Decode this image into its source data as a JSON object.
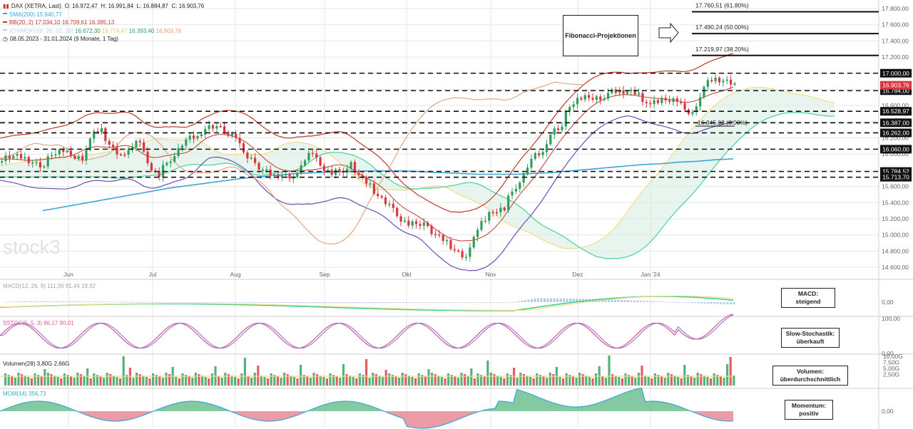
{
  "header": {
    "instrument": {
      "label": "DAX (XETRA, Last)",
      "open": "O: 16.972,47",
      "high": "H: 16.991,84",
      "low": "L: 16.884,87",
      "close": "C: 16.903,76",
      "color": "#c0392b"
    },
    "sma": {
      "label": "SMA(200)",
      "value": "15.940,77",
      "color": "#3aa7d8"
    },
    "bb": {
      "label": "BB(20, 2)",
      "values": "17.034,10 16.709,61 16.385,13",
      "color": "#c0392b"
    },
    "ichimoku": {
      "label": "ICHIMOKU(9, 26, 52, 26)",
      "v1": "16.672,30",
      "v2": "16.774,47",
      "v3": "16.393,40",
      "v4": "16.903,76",
      "color": "#bbbbbb"
    },
    "range": "08.05.2023 - 31.01.2024",
    "range_note": "(9 Monate, 1 Tag)"
  },
  "watermark": "stock3",
  "fibonacci": {
    "box_label": "Fibonacci-Projektionen",
    "levels": [
      {
        "label": "17.760,51 (61.80%)",
        "value": 17760.51
      },
      {
        "label": "17.490,24 (50.00%)",
        "value": 17490.24
      },
      {
        "label": "17.219,97 (38.20%)",
        "value": 17219.97
      },
      {
        "label": "16.345,02 (0.00%)",
        "value": 16345.02
      }
    ]
  },
  "price_axis": {
    "ticks": [
      "17.800,00",
      "17.600,00",
      "17.400,00",
      "17.200,00",
      "17.000,00",
      "16.800,00",
      "16.600,00",
      "16.400,00",
      "16.200,00",
      "16.000,00",
      "15.800,00",
      "15.600,00",
      "15.400,00",
      "15.200,00",
      "15.000,00",
      "14.800,00",
      "14.600,00"
    ],
    "tick_values": [
      17800,
      17600,
      17400,
      17200,
      17000,
      16800,
      16600,
      16400,
      16200,
      16000,
      15800,
      15600,
      15400,
      15200,
      15000,
      14800,
      14600
    ]
  },
  "hlines": [
    {
      "label": "17.000,00",
      "value": 17000
    },
    {
      "label": "16.784,00",
      "value": 16784
    },
    {
      "label": "16.528,97",
      "value": 16528.97
    },
    {
      "label": "16.387,00",
      "value": 16387
    },
    {
      "label": "16.262,00",
      "value": 16262
    },
    {
      "label": "16.060,00",
      "value": 16060
    },
    {
      "label": "15.784,52",
      "value": 15784.52
    },
    {
      "label": "15.713,70",
      "value": 15713.7
    }
  ],
  "last_price": {
    "label": "16.903,76",
    "value": 16903.76,
    "color": "#d9363e"
  },
  "months": [
    "Jun",
    "Jul",
    "Aug",
    "Sep",
    "Okt",
    "Nov",
    "Dez",
    "Jan '24"
  ],
  "panels": {
    "macd": {
      "label": "MACD(12, 26, 9)",
      "v1": "111,36",
      "v2": "91,44",
      "v3": "19,92",
      "axis": "0,00",
      "note_title": "MACD:",
      "note_value": "steigend"
    },
    "stoch": {
      "label": "SSTOC(5, 5, 3)",
      "v1": "86,17",
      "v2": "90,01",
      "axis_top": "100,00",
      "axis_bottom": "0,00",
      "note_title": "Slow-Stochastik:",
      "note_value": "überkauft"
    },
    "volume": {
      "label": "Volumen(28)",
      "v1": "3,80G",
      "v2": "2,66G",
      "axis": [
        "10,00G",
        "7,50G",
        "5,00G",
        "2,50G"
      ],
      "note_title": "Volumen:",
      "note_value": "überdurchschnittlich"
    },
    "momentum": {
      "label": "MOM(14)",
      "v1": "356,73",
      "axis": "0,00",
      "note_title": "Momentum:",
      "note_value": "positiv"
    }
  },
  "colors": {
    "up": "#2e9e5b",
    "down": "#d9363e",
    "grid": "#e6e6e6",
    "sma": "#3aa7d8",
    "bb": "#c0392b",
    "bb_low": "#6a4fb5",
    "tenkan": "#e0a07a",
    "kumo_up": "#d8efe4",
    "kumo_down": "#f8d8dc",
    "spanA": "#f2dc8a",
    "spanB": "#5ed6a8"
  },
  "chart_data": {
    "type": "candlestick",
    "title": "DAX (XETRA, Last)",
    "period": "08.05.2023 - 31.01.2024",
    "ylim": [
      14500,
      17850
    ],
    "x": [
      "2023-05-08",
      "2023-05-15",
      "2023-05-22",
      "2023-05-29",
      "2023-06-05",
      "2023-06-12",
      "2023-06-19",
      "2023-06-26",
      "2023-07-03",
      "2023-07-10",
      "2023-07-17",
      "2023-07-24",
      "2023-07-31",
      "2023-08-07",
      "2023-08-14",
      "2023-08-21",
      "2023-08-28",
      "2023-09-04",
      "2023-09-11",
      "2023-09-18",
      "2023-09-25",
      "2023-10-02",
      "2023-10-09",
      "2023-10-16",
      "2023-10-23",
      "2023-10-30",
      "2023-11-06",
      "2023-11-13",
      "2023-11-20",
      "2023-11-27",
      "2023-12-04",
      "2023-12-11",
      "2023-12-18",
      "2023-12-27",
      "2024-01-02",
      "2024-01-08",
      "2024-01-15",
      "2024-01-22",
      "2024-01-29"
    ],
    "close": [
      15950,
      15920,
      15870,
      16050,
      15990,
      16290,
      15950,
      16150,
      15700,
      16100,
      16200,
      16400,
      16180,
      15930,
      15650,
      15710,
      16030,
      15750,
      15900,
      15560,
      15390,
      15080,
      15190,
      14830,
      14700,
      15220,
      15360,
      15790,
      16020,
      16420,
      16720,
      16750,
      16720,
      16750,
      16600,
      16690,
      16560,
      16950,
      16904
    ],
    "sma200": [
      15300,
      15340,
      15380,
      15420,
      15460,
      15500,
      15540,
      15580,
      15610,
      15640,
      15670,
      15700,
      15720,
      15740,
      15760,
      15770,
      15780,
      15785,
      15790,
      15792,
      15790,
      15780,
      15770,
      15760,
      15750,
      15750,
      15750,
      15760,
      15770,
      15790,
      15810,
      15830,
      15850,
      15870,
      15880,
      15900,
      15910,
      15930,
      15941
    ],
    "momentum_last": 356.73,
    "macd_last": [
      111.36,
      91.44,
      19.92
    ],
    "stoch_last": [
      86.17,
      90.01
    ],
    "volume_last": [
      "3,80G",
      "2,66G"
    ]
  }
}
